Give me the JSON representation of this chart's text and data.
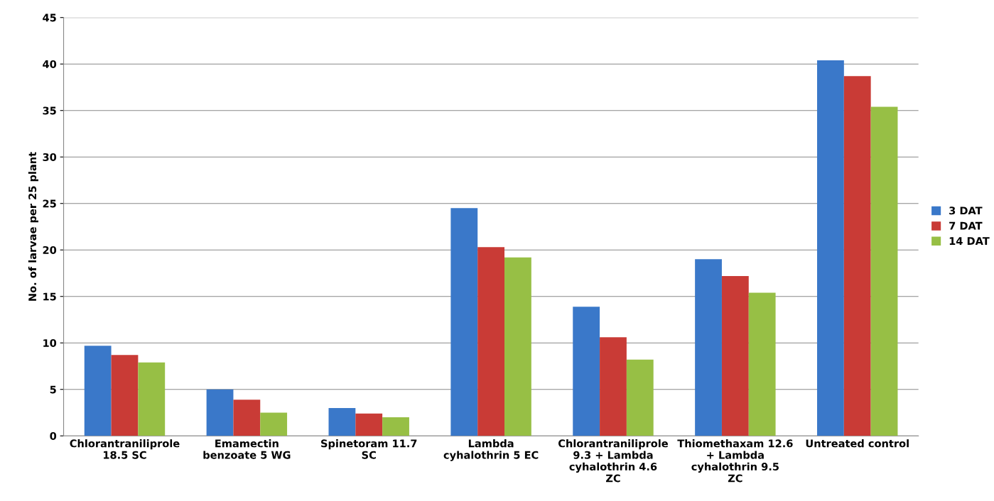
{
  "chart_data": {
    "type": "bar",
    "ylabel": "No. of larvae per 25 plant",
    "categories": [
      "Chlorantraniliprole 18.5 SC",
      "Emamectin benzoate 5 WG",
      "Spinetoram 11.7 SC",
      "Lambda cyhalothrin 5 EC",
      "Chlorantraniliprole 9.3 + Lambda cyhalothrin 4.6 ZC",
      "Thiomethaxam 12.6 + Lambda cyhalothrin 9.5 ZC",
      "Untreated control"
    ],
    "series": [
      {
        "name": "3 DAT",
        "color": "#3a78c9",
        "values": [
          9.7,
          5.0,
          3.0,
          24.5,
          13.9,
          19.0,
          40.4
        ]
      },
      {
        "name": "7 DAT",
        "color": "#c93b36",
        "values": [
          8.7,
          3.9,
          2.4,
          20.3,
          10.6,
          17.2,
          38.7
        ]
      },
      {
        "name": "14 DAT",
        "color": "#97bf45",
        "values": [
          7.9,
          2.5,
          2.0,
          19.2,
          8.2,
          15.4,
          35.4
        ]
      }
    ],
    "ylim": [
      0,
      45
    ],
    "yticks": [
      0,
      5,
      10,
      15,
      20,
      25,
      30,
      35,
      40,
      45
    ],
    "grid": "y",
    "legend": "right"
  }
}
